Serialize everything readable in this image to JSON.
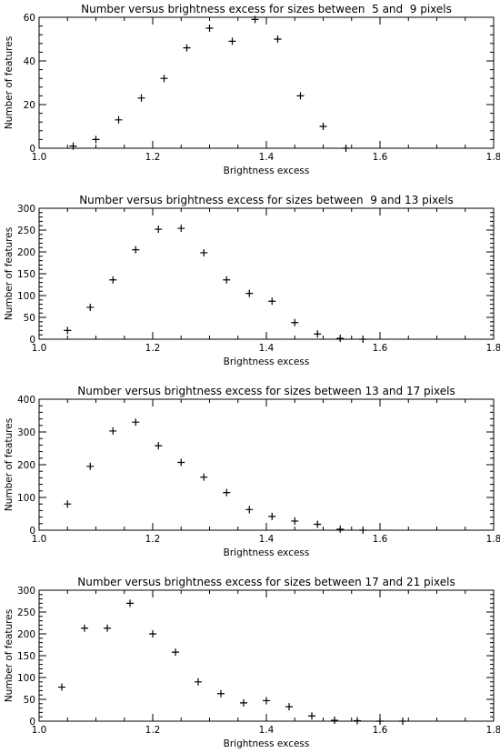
{
  "chart_data": [
    {
      "type": "scatter",
      "title": "Number versus brightness excess for sizes between  5 and  9 pixels",
      "xlabel": "Brightness excess",
      "ylabel": "Number of features",
      "xlim": [
        1.0,
        1.8
      ],
      "ylim": [
        0,
        60
      ],
      "xticks": [
        "1.0",
        "1.2",
        "1.4",
        "1.6",
        "1.8"
      ],
      "yticks": [
        "0",
        "20",
        "40",
        "60"
      ],
      "ytick_values": [
        0,
        20,
        40,
        60
      ],
      "marker": "plus",
      "grid": false,
      "x": [
        1.06,
        1.1,
        1.14,
        1.18,
        1.22,
        1.26,
        1.3,
        1.34,
        1.38,
        1.42,
        1.46,
        1.5,
        1.54
      ],
      "y": [
        1,
        4,
        13,
        23,
        32,
        46,
        55,
        49,
        59,
        50,
        24,
        10,
        0
      ]
    },
    {
      "type": "scatter",
      "title": "Number versus brightness excess for sizes between  9 and 13 pixels",
      "xlabel": "Brightness excess",
      "ylabel": "Number of features",
      "xlim": [
        1.0,
        1.8
      ],
      "ylim": [
        0,
        300
      ],
      "xticks": [
        "1.0",
        "1.2",
        "1.4",
        "1.6",
        "1.8"
      ],
      "yticks": [
        "0",
        "50",
        "100",
        "150",
        "200",
        "250",
        "300"
      ],
      "ytick_values": [
        0,
        50,
        100,
        150,
        200,
        250,
        300
      ],
      "marker": "plus",
      "grid": false,
      "x": [
        1.05,
        1.09,
        1.13,
        1.17,
        1.21,
        1.25,
        1.29,
        1.33,
        1.37,
        1.41,
        1.45,
        1.49,
        1.53,
        1.57
      ],
      "y": [
        20,
        73,
        136,
        205,
        252,
        254,
        198,
        136,
        105,
        87,
        38,
        12,
        2,
        0
      ]
    },
    {
      "type": "scatter",
      "title": "Number versus brightness excess for sizes between 13 and 17 pixels",
      "xlabel": "Brightness excess",
      "ylabel": "Number of features",
      "xlim": [
        1.0,
        1.8
      ],
      "ylim": [
        0,
        400
      ],
      "xticks": [
        "1.0",
        "1.2",
        "1.4",
        "1.6",
        "1.8"
      ],
      "yticks": [
        "0",
        "100",
        "200",
        "300",
        "400"
      ],
      "ytick_values": [
        0,
        100,
        200,
        300,
        400
      ],
      "marker": "plus",
      "grid": false,
      "x": [
        1.05,
        1.09,
        1.13,
        1.17,
        1.21,
        1.25,
        1.29,
        1.33,
        1.37,
        1.41,
        1.45,
        1.49,
        1.53,
        1.57
      ],
      "y": [
        80,
        195,
        303,
        330,
        258,
        207,
        162,
        115,
        63,
        42,
        28,
        18,
        3,
        0
      ]
    },
    {
      "type": "scatter",
      "title": "Number versus brightness excess for sizes between 17 and 21 pixels",
      "xlabel": "Brightness excess",
      "ylabel": "Number of features",
      "xlim": [
        1.0,
        1.8
      ],
      "ylim": [
        0,
        300
      ],
      "xticks": [
        "1.0",
        "1.2",
        "1.4",
        "1.6",
        "1.8"
      ],
      "yticks": [
        "0",
        "50",
        "100",
        "150",
        "200",
        "250",
        "300"
      ],
      "ytick_values": [
        0,
        50,
        100,
        150,
        200,
        250,
        300
      ],
      "marker": "plus",
      "grid": false,
      "x": [
        1.04,
        1.08,
        1.12,
        1.16,
        1.2,
        1.24,
        1.28,
        1.32,
        1.36,
        1.4,
        1.44,
        1.48,
        1.52,
        1.56,
        1.6,
        1.64
      ],
      "y": [
        78,
        213,
        213,
        270,
        200,
        158,
        90,
        63,
        42,
        47,
        33,
        12,
        2,
        1,
        0,
        0
      ]
    }
  ]
}
